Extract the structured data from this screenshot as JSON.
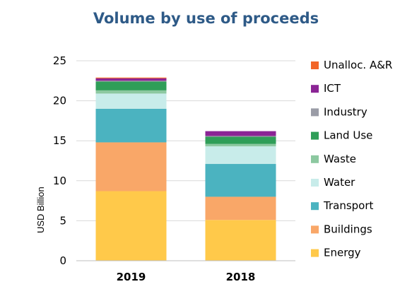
{
  "chart_data": {
    "type": "bar",
    "stacked": true,
    "title": "Volume by use of proceeds",
    "ylabel": "USD Billion",
    "xlabel": "",
    "ylim": [
      0,
      25
    ],
    "yticks": [
      0,
      5,
      10,
      15,
      20,
      25
    ],
    "grid": true,
    "legend_position": "right",
    "categories": [
      "2019",
      "2018"
    ],
    "series": [
      {
        "name": "Energy",
        "color": "#ffc94a",
        "values": [
          8.7,
          5.1
        ]
      },
      {
        "name": "Buildings",
        "color": "#f9a768",
        "values": [
          6.1,
          2.9
        ]
      },
      {
        "name": "Transport",
        "color": "#4bb3c0",
        "values": [
          4.2,
          4.1
        ]
      },
      {
        "name": "Water",
        "color": "#c8ecea",
        "values": [
          1.9,
          2.2
        ]
      },
      {
        "name": "Waste",
        "color": "#8cc8a0",
        "values": [
          0.4,
          0.3
        ]
      },
      {
        "name": "Land Use",
        "color": "#2f9e58",
        "values": [
          1.1,
          0.9
        ]
      },
      {
        "name": "Industry",
        "color": "#9a9ca6",
        "values": [
          0.1,
          0.1
        ]
      },
      {
        "name": "ICT",
        "color": "#8b2595",
        "values": [
          0.3,
          0.6
        ]
      },
      {
        "name": "Unalloc. A&R",
        "color": "#f26527",
        "values": [
          0.1,
          0.0
        ]
      }
    ]
  }
}
